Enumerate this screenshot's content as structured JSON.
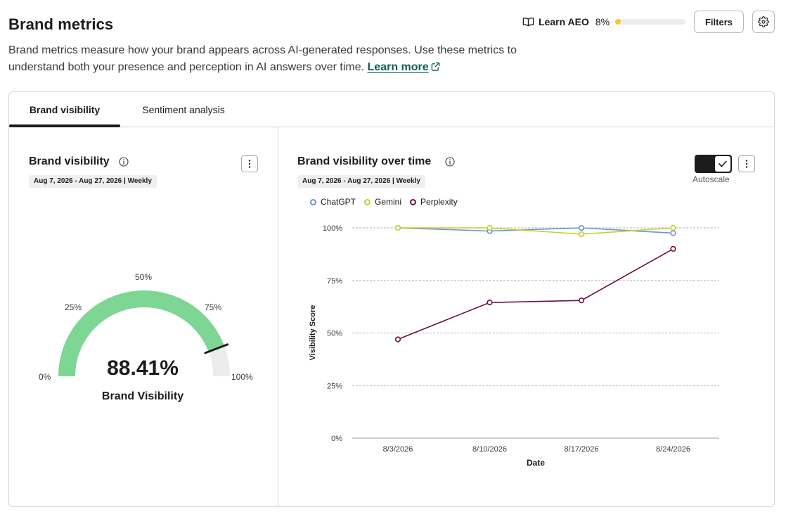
{
  "header": {
    "title": "Brand metrics",
    "description": "Brand metrics measure how your brand appears across AI-generated responses. Use these metrics to understand both your presence and perception in AI answers over time.",
    "learn_more": "Learn more",
    "learn_aeo_label": "Learn AEO",
    "learn_aeo_progress_text": "8%",
    "learn_aeo_progress": 0.08,
    "filters_label": "Filters",
    "settings_icon": "gear-icon"
  },
  "tabs": [
    {
      "label": "Brand visibility",
      "active": true
    },
    {
      "label": "Sentiment analysis",
      "active": false
    }
  ],
  "visibility_panel": {
    "title": "Brand visibility",
    "date_range": "Aug 7, 2026 - Aug 27, 2026 | Weekly",
    "gauge": {
      "value": 88.41,
      "value_text": "88.41%",
      "caption": "Brand Visibility",
      "tick_labels": [
        "0%",
        "25%",
        "50%",
        "75%",
        "100%"
      ],
      "fill_color": "#7ed694",
      "track_color": "#ececec"
    }
  },
  "trend_panel": {
    "title": "Brand visibility over time",
    "date_range": "Aug 7, 2026 - Aug 27, 2026 | Weekly",
    "autoscale_label": "Autoscale",
    "autoscale_on": true
  },
  "chart_data": {
    "type": "line",
    "xlabel": "Date",
    "ylabel": "Visibility Score",
    "x": [
      "8/3/2026",
      "8/10/2026",
      "8/17/2026",
      "8/24/2026"
    ],
    "ylim": [
      0,
      100
    ],
    "yticks": [
      "0%",
      "25%",
      "50%",
      "75%",
      "100%"
    ],
    "grid": true,
    "legend": "top-left",
    "series": [
      {
        "name": "ChatGPT",
        "color": "#6a93d4",
        "values": [
          100,
          98.5,
          100,
          97.5
        ]
      },
      {
        "name": "Gemini",
        "color": "#c4cf2a",
        "values": [
          100,
          100,
          97,
          100
        ]
      },
      {
        "name": "Perplexity",
        "color": "#6b0f45",
        "values": [
          47,
          64.5,
          65.5,
          90
        ]
      }
    ]
  }
}
